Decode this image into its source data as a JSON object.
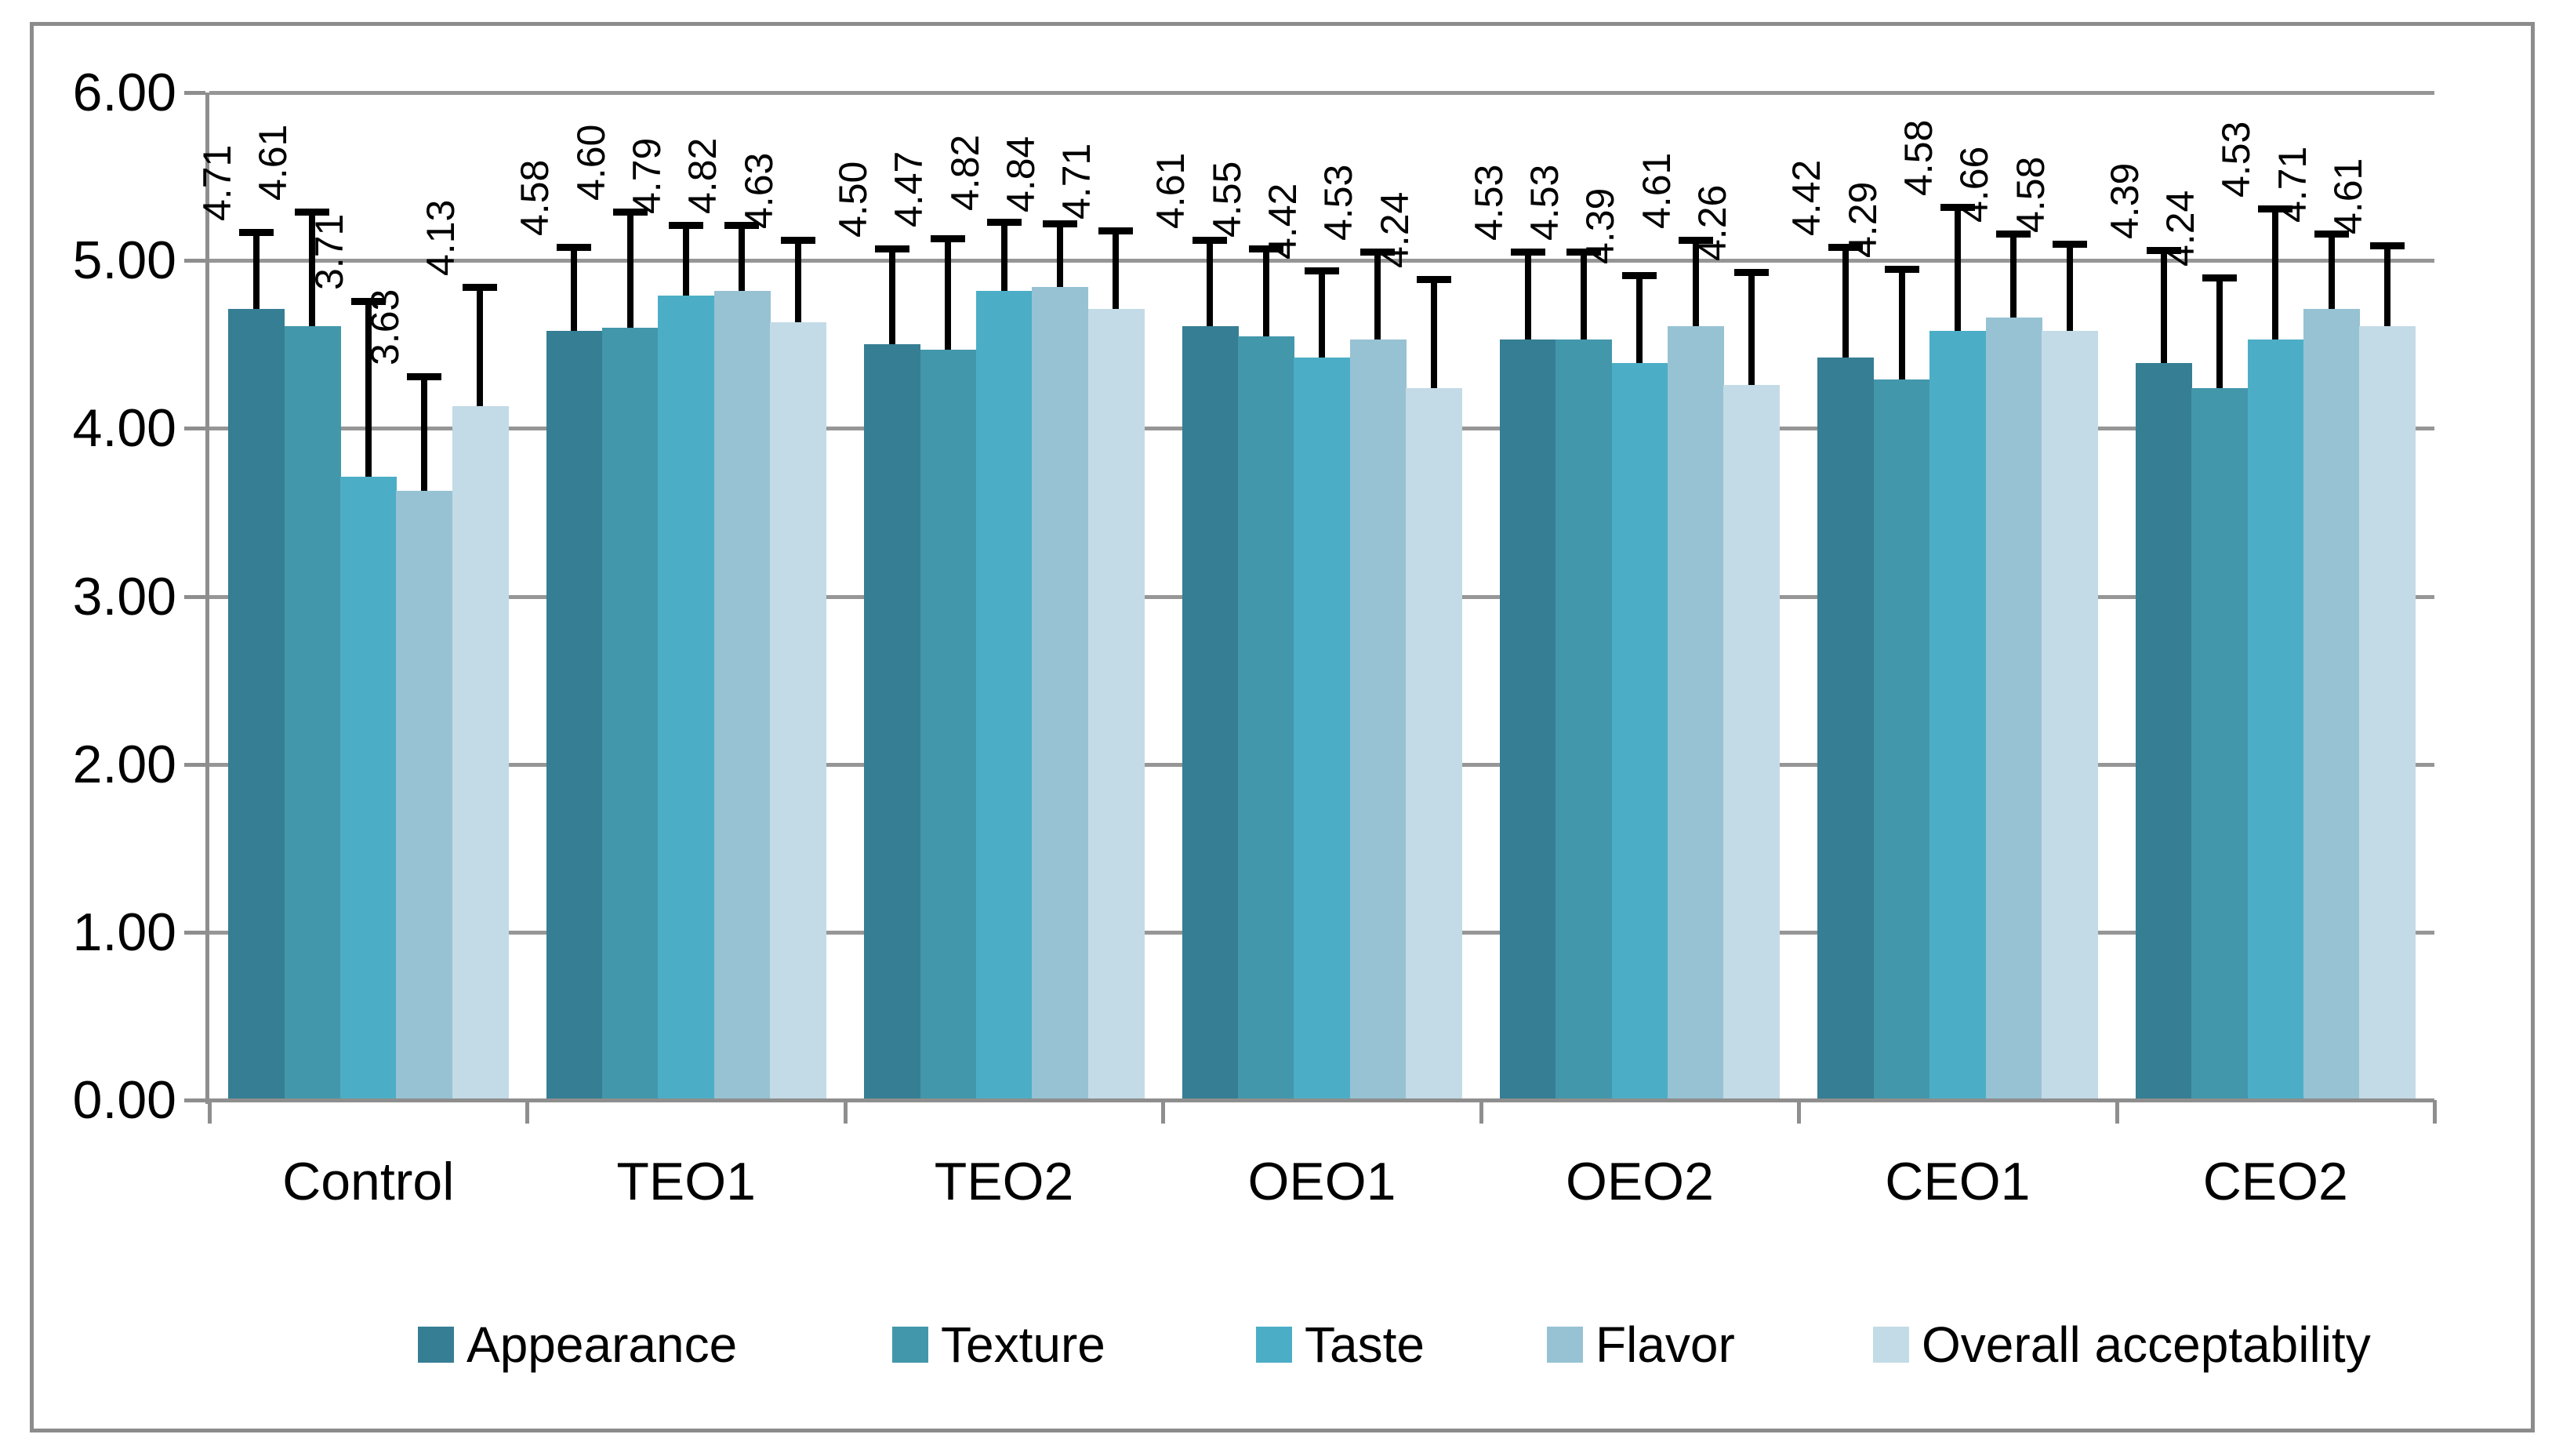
{
  "chart_data": {
    "type": "bar",
    "title": "",
    "xlabel": "",
    "ylabel": "",
    "categories": [
      "Control",
      "TEO1",
      "TEO2",
      "OEO1",
      "OEO2",
      "CEO1",
      "CEO2"
    ],
    "series": [
      {
        "name": "Appearance",
        "color": "#367E93",
        "values": [
          4.71,
          4.58,
          4.5,
          4.61,
          4.53,
          4.42,
          4.39
        ],
        "labels": [
          "4.71",
          "4.58",
          "4.50",
          "4.61",
          "4.53",
          "4.42",
          "4.39"
        ],
        "errors_plus": [
          0.46,
          0.5,
          0.57,
          0.51,
          0.52,
          0.66,
          0.67
        ]
      },
      {
        "name": "Texture",
        "color": "#4397AB",
        "values": [
          4.61,
          4.6,
          4.47,
          4.55,
          4.53,
          4.29,
          4.24
        ],
        "labels": [
          "4.61",
          "4.60",
          "4.47",
          "4.55",
          "4.53",
          "4.29",
          "4.24"
        ],
        "errors_plus": [
          0.68,
          0.69,
          0.66,
          0.52,
          0.52,
          0.66,
          0.66
        ]
      },
      {
        "name": "Taste",
        "color": "#4CAEC6",
        "values": [
          3.71,
          4.79,
          4.82,
          4.42,
          4.39,
          4.58,
          4.53
        ],
        "labels": [
          "3.71",
          "4.79",
          "4.82",
          "4.42",
          "4.39",
          "4.58",
          "4.53"
        ],
        "errors_plus": [
          1.05,
          0.42,
          0.41,
          0.52,
          0.52,
          0.74,
          0.78
        ]
      },
      {
        "name": "Flavor",
        "color": "#97C2D3",
        "values": [
          3.63,
          4.82,
          4.84,
          4.53,
          4.61,
          4.66,
          4.71
        ],
        "labels": [
          "3.63",
          "4.82",
          "4.84",
          "4.53",
          "4.61",
          "4.66",
          "4.71"
        ],
        "errors_plus": [
          0.68,
          0.39,
          0.38,
          0.52,
          0.51,
          0.5,
          0.45
        ]
      },
      {
        "name": "Overall acceptability",
        "color": "#C3DBE6",
        "values": [
          4.13,
          4.63,
          4.71,
          4.24,
          4.26,
          4.58,
          4.61
        ],
        "labels": [
          "4.13",
          "4.63",
          "4.71",
          "4.24",
          "4.26",
          "4.58",
          "4.61"
        ],
        "errors_plus": [
          0.71,
          0.49,
          0.47,
          0.65,
          0.67,
          0.52,
          0.48
        ]
      }
    ],
    "y_axis": {
      "min": 0,
      "max": 6,
      "step": 1,
      "ticks_top_to_bottom": [
        "6.00",
        "5.00",
        "4.00",
        "3.00",
        "2.00",
        "1.00",
        "0.00"
      ]
    },
    "error_bars": {
      "direction": "plus",
      "cap": true
    },
    "value_labels": {
      "rotation_degrees": -90,
      "position": "above-error-bar"
    },
    "grid": true,
    "legend_position": "bottom"
  },
  "style": {
    "background": "#FFFFFF",
    "grid_color": "#969696",
    "axis_color": "#8E8E8E",
    "frame_color": "#8C8C8C",
    "error_bar_color": "#000000",
    "text_color": "#000000"
  }
}
